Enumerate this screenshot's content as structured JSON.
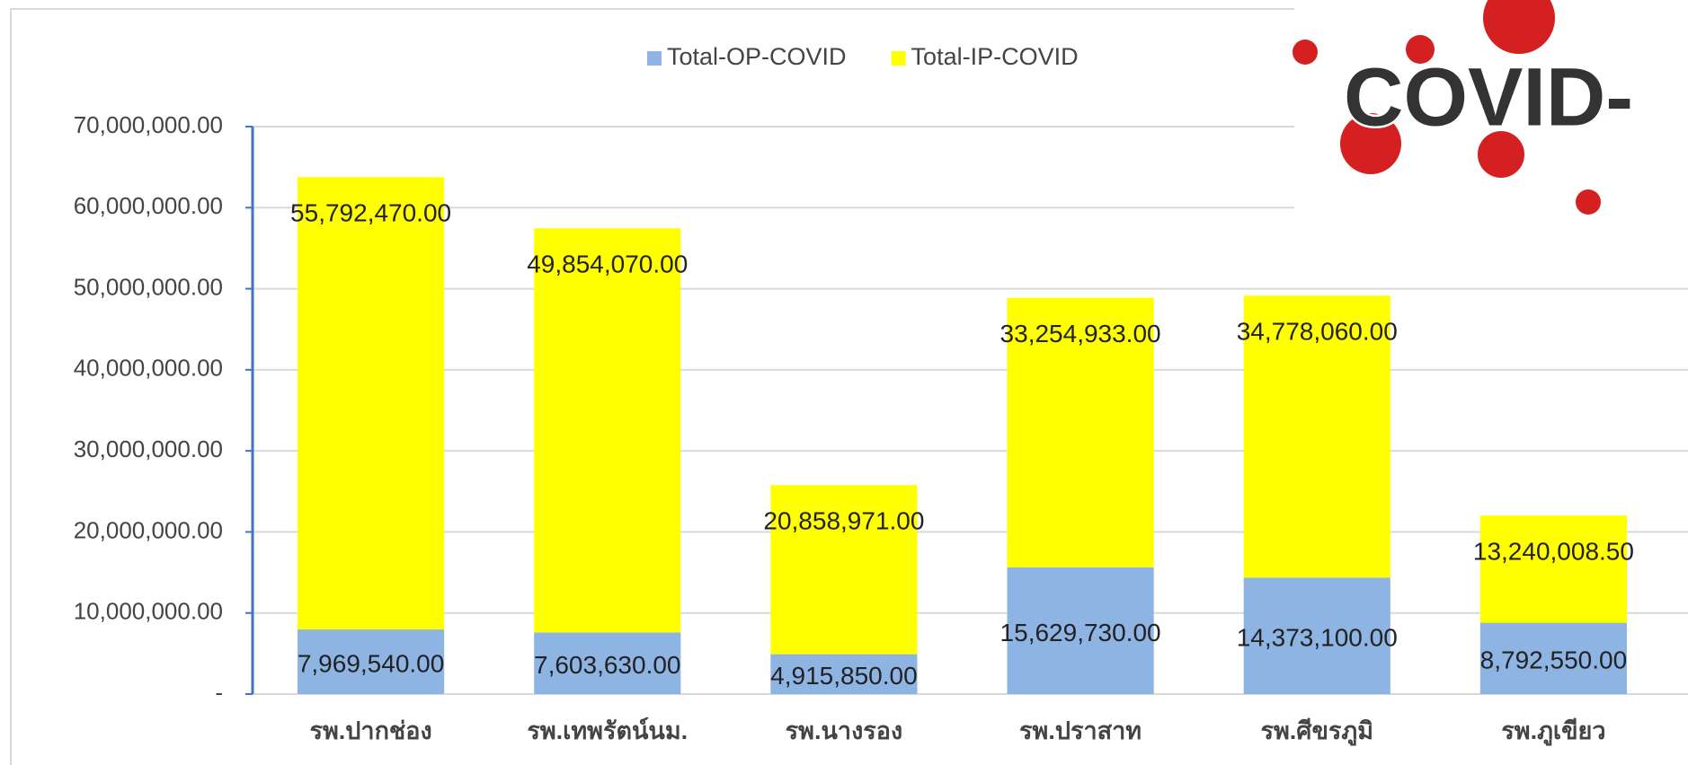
{
  "chart_data": {
    "type": "stacked_bar",
    "categories": [
      "รพ.ปากช่อง",
      "รพ.เทพรัตน์นม.",
      "รพ.นางรอง",
      "รพ.ปราสาท",
      "รพ.ศีขรภูมิ",
      "รพ.ภูเขียว"
    ],
    "series": [
      {
        "name": "Total-OP-COVID",
        "color": "#8eb4e3",
        "values": [
          7969540,
          7603630,
          4915850,
          15629730,
          14373100,
          8792550
        ],
        "value_labels": [
          "7,969,540.00",
          "7,603,630.00",
          "4,915,850.00",
          "15,629,730.00",
          "14,373,100.00",
          "8,792,550.00"
        ]
      },
      {
        "name": "Total-IP-COVID",
        "color": "#ffff00",
        "values": [
          55792470,
          49854070,
          20858971,
          33254933,
          34778060,
          13240008.5
        ],
        "value_labels": [
          "55,792,470.00",
          "49,854,070.00",
          "20,858,971.00",
          "33,254,933.00",
          "34,778,060.00",
          "13,240,008.50"
        ]
      }
    ],
    "ylim": [
      0,
      70000000
    ],
    "yticks": [
      {
        "value": 0,
        "label": "-"
      },
      {
        "value": 10000000,
        "label": "10,000,000.00"
      },
      {
        "value": 20000000,
        "label": "20,000,000.00"
      },
      {
        "value": 30000000,
        "label": "30,000,000.00"
      },
      {
        "value": 40000000,
        "label": "40,000,000.00"
      },
      {
        "value": 50000000,
        "label": "50,000,000.00"
      },
      {
        "value": 60000000,
        "label": "60,000,000.00"
      },
      {
        "value": 70000000,
        "label": "70,000,000.00"
      }
    ],
    "grid": true,
    "legend": "top"
  },
  "sticker": {
    "text": "COVID-"
  }
}
